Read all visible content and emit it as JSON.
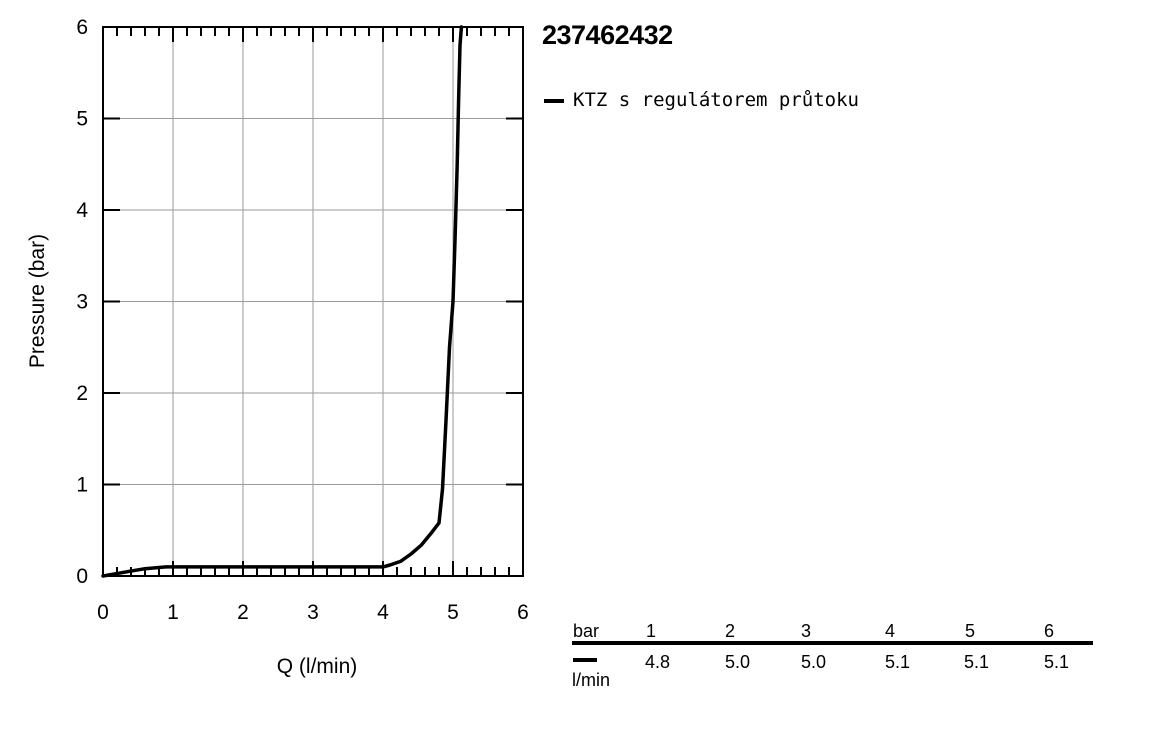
{
  "chart_data": {
    "type": "line",
    "title": "237462432",
    "xlabel": "Q (l/min)",
    "ylabel": "Pressure (bar)",
    "xlim": [
      0,
      6
    ],
    "ylim": [
      0,
      6
    ],
    "xticks": [
      "0",
      "1",
      "2",
      "3",
      "4",
      "5",
      "6"
    ],
    "yticks": [
      "0",
      "1",
      "2",
      "3",
      "4",
      "5",
      "6"
    ],
    "grid": true,
    "legend_position": "top-right, outside plot",
    "series": [
      {
        "name": "KTZ s regulátorem průtoku",
        "color": "#000000",
        "x": [
          0,
          0.3,
          0.6,
          0.9,
          1.0,
          2.0,
          3.0,
          3.9,
          4.0,
          4.1,
          4.25,
          4.4,
          4.55,
          4.7,
          4.8,
          4.85,
          4.9,
          4.95,
          5.0,
          5.03,
          5.06,
          5.08,
          5.1,
          5.12
        ],
        "y": [
          0,
          0.04,
          0.08,
          0.1,
          0.1,
          0.1,
          0.1,
          0.1,
          0.1,
          0.12,
          0.16,
          0.24,
          0.34,
          0.48,
          0.58,
          0.95,
          1.7,
          2.5,
          3.0,
          3.7,
          4.5,
          5.2,
          5.8,
          6.0
        ]
      }
    ]
  },
  "table": {
    "header_label": "bar",
    "header": [
      "1",
      "2",
      "3",
      "4",
      "5",
      "6"
    ],
    "unit_label": "l/min",
    "values": [
      "4.8",
      "5.0",
      "5.0",
      "5.1",
      "5.1",
      "5.1"
    ]
  }
}
